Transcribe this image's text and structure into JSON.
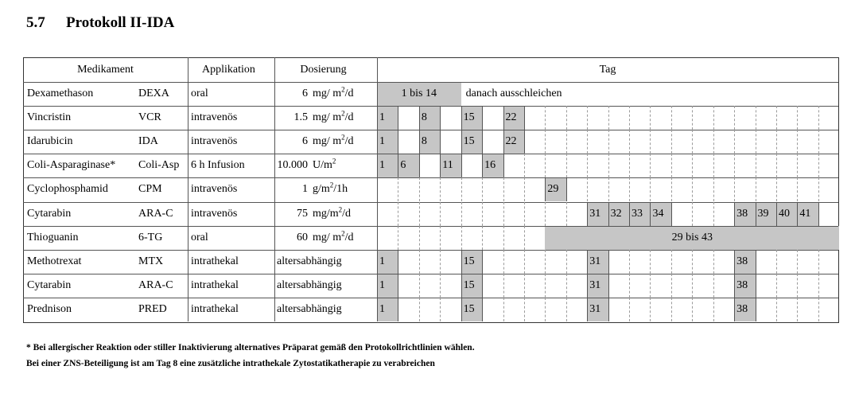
{
  "section": {
    "number": "5.7",
    "title": "Protokoll II-IDA"
  },
  "table": {
    "headers": {
      "medikament": "Medikament",
      "applikation": "Applikation",
      "dosierung": "Dosierung",
      "tag": "Tag"
    },
    "rows": [
      {
        "name": "Dexamethason",
        "abbr": "DEXA",
        "app": "oral",
        "dose_val": "6",
        "dose_unit_html": "mg/ m<sup>2</sup>/d",
        "range": {
          "from": 1,
          "to": 14,
          "label": "1 bis 14"
        },
        "note": "danach ausschleichen",
        "days": []
      },
      {
        "name": "Vincristin",
        "abbr": "VCR",
        "app": "intravenös",
        "dose_val": "1.5",
        "dose_unit_html": "mg/ m<sup>2</sup>/d",
        "days": [
          1,
          8,
          15,
          22
        ]
      },
      {
        "name": "Idarubicin",
        "abbr": "IDA",
        "app": "intravenös",
        "dose_val": "6",
        "dose_unit_html": "mg/ m<sup>2</sup>/d",
        "days": [
          1,
          8,
          15,
          22
        ]
      },
      {
        "name": "Coli-Asparaginase*",
        "abbr": "Coli-Asp",
        "app": "6 h Infusion",
        "dose_val": "10.000",
        "dose_unit_html": "U/m<sup>2</sup>",
        "days": [
          1,
          6,
          11,
          16
        ]
      },
      {
        "name": "Cyclophosphamid",
        "abbr": "CPM",
        "app": "intravenös",
        "dose_val": "1",
        "dose_unit_html": "g/m<sup>2</sup>/1h",
        "days": [
          29
        ]
      },
      {
        "name": "Cytarabin",
        "abbr": "ARA-C",
        "app": "intravenös",
        "dose_val": "75",
        "dose_unit_html": "mg/m<sup>2</sup>/d",
        "days": [
          31,
          32,
          33,
          34,
          38,
          39,
          40,
          41
        ]
      },
      {
        "name": "Thioguanin",
        "abbr": "6-TG",
        "app": "oral",
        "dose_val": "60",
        "dose_unit_html": "mg/ m<sup>2</sup>/d",
        "range": {
          "from": 29,
          "to": 43,
          "label": "29 bis 43"
        },
        "days": []
      },
      {
        "name": "Methotrexat",
        "abbr": "MTX",
        "app": "intrathekal",
        "dose_text": "altersabhängig",
        "days": [
          1,
          15,
          31,
          38
        ]
      },
      {
        "name": "Cytarabin",
        "abbr": "ARA-C",
        "app": "intrathekal",
        "dose_text": "altersabhängig",
        "days": [
          1,
          15,
          31,
          38
        ]
      },
      {
        "name": "Prednison",
        "abbr": "PRED",
        "app": "intrathekal",
        "dose_text": "altersabhängig",
        "days": [
          1,
          15,
          31,
          38
        ]
      }
    ]
  },
  "footnotes": {
    "line1": "* Bei allergischer Reaktion oder stiller Inaktivierung alternatives Präparat gemäß den Protokollrichtlinien wählen.",
    "line2": "Bei einer ZNS-Beteiligung ist am Tag 8 eine zusätzliche intrathekale Zytostatikatherapie zu verabreichen"
  }
}
